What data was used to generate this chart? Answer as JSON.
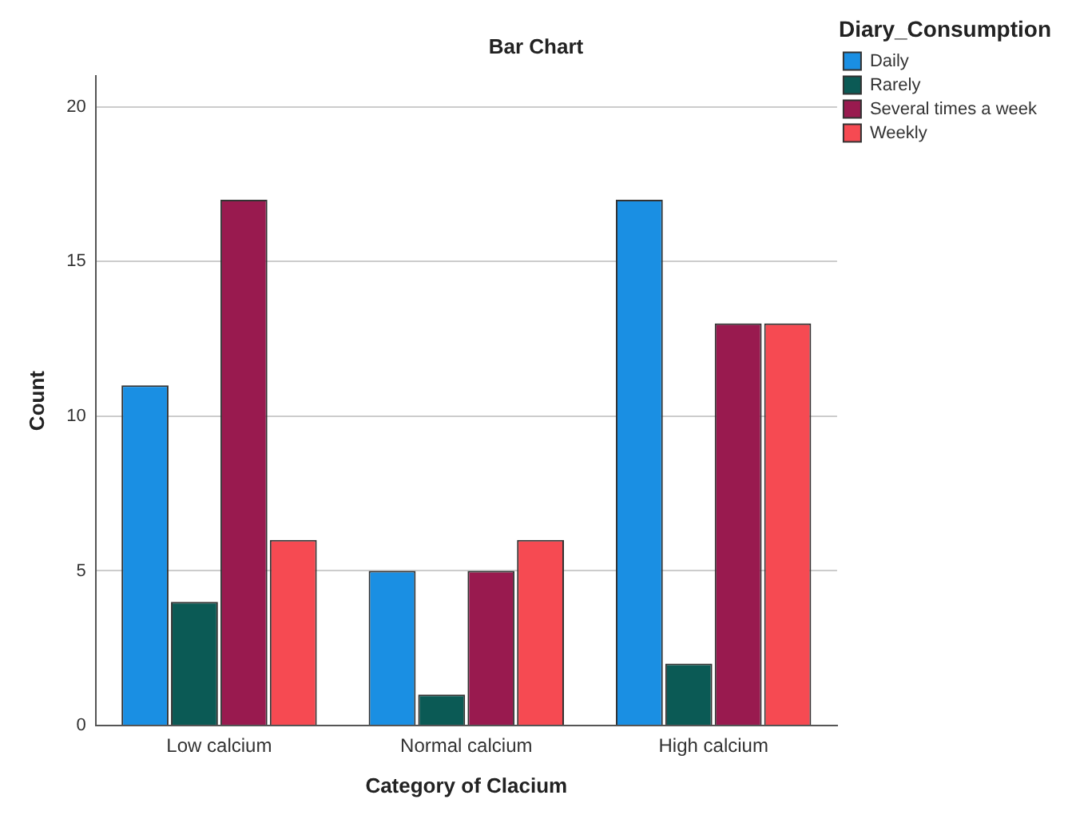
{
  "chart_data": {
    "type": "bar",
    "title": "Bar Chart",
    "xlabel": "Category of Clacium",
    "ylabel": "Count",
    "legend_title": "Diary_Consumption",
    "categories": [
      "Low calcium",
      "Normal calcium",
      "High calcium"
    ],
    "series": [
      {
        "name": "Daily",
        "color": "#1a8fe3",
        "values": [
          11,
          5,
          17
        ]
      },
      {
        "name": "Rarely",
        "color": "#0b5a55",
        "values": [
          4,
          1,
          2
        ]
      },
      {
        "name": "Several times a week",
        "color": "#991a4f",
        "values": [
          17,
          5,
          13
        ]
      },
      {
        "name": "Weekly",
        "color": "#f64a52",
        "values": [
          6,
          6,
          13
        ]
      }
    ],
    "ylim": [
      0,
      21
    ],
    "yticks": [
      0,
      5,
      10,
      15,
      20
    ],
    "grid": "y",
    "legend": "top right"
  }
}
